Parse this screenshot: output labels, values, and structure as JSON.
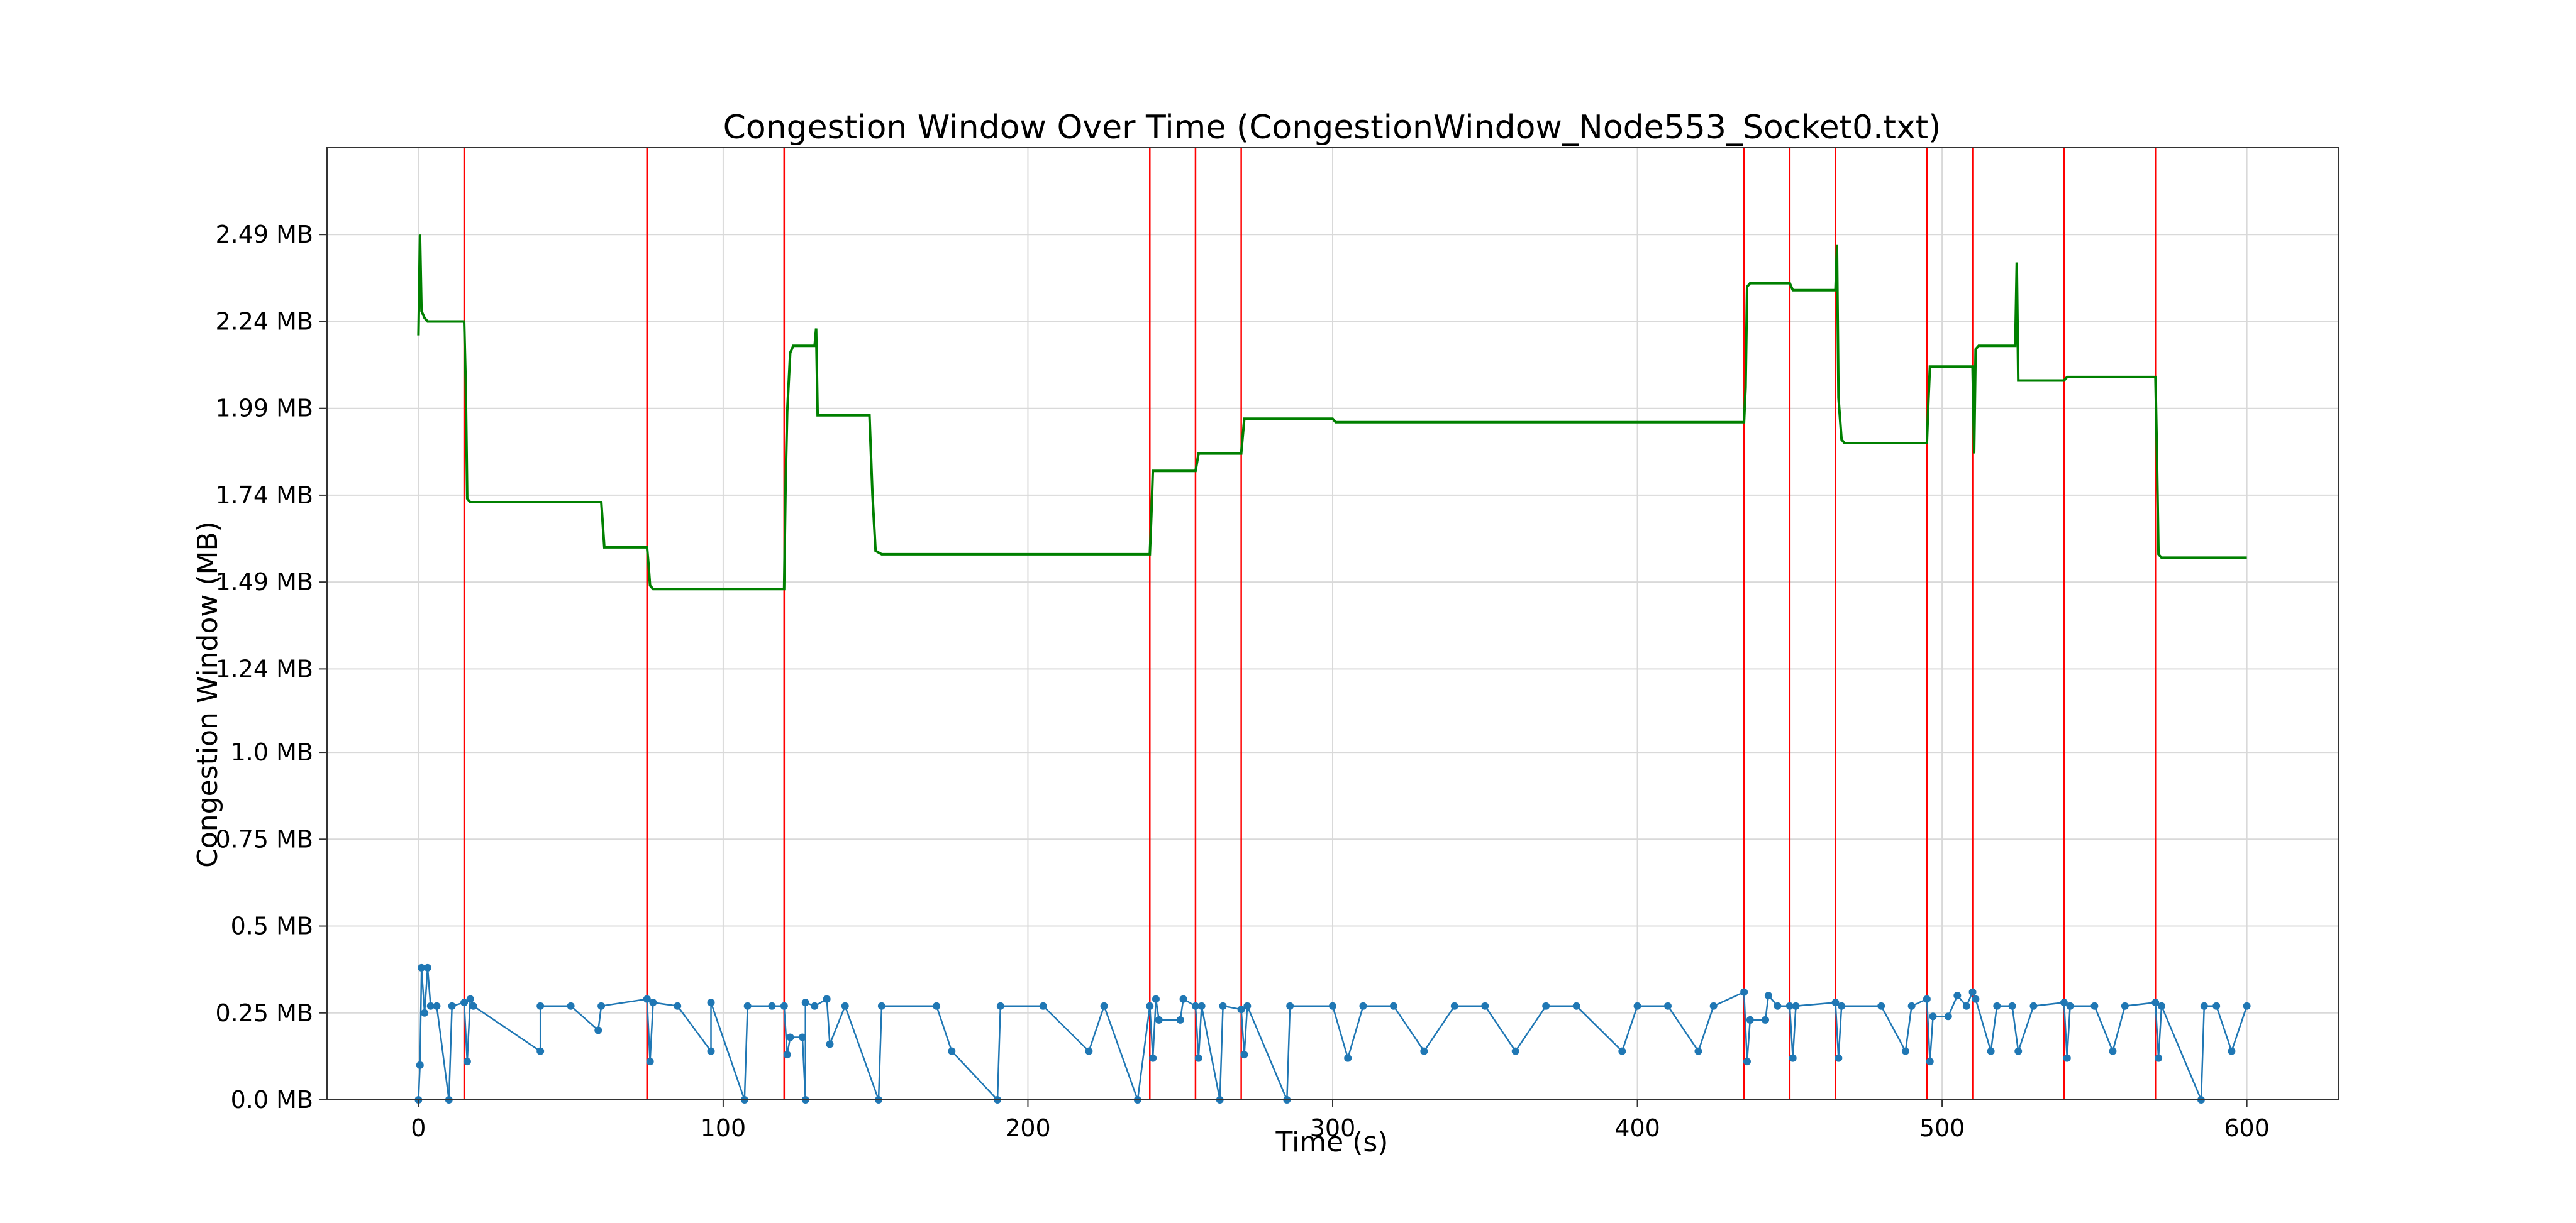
{
  "chart_data": {
    "type": "line",
    "title": "Congestion Window Over Time (CongestionWindow_Node553_Socket0.txt)",
    "xlabel": "Time (s)",
    "ylabel": "Congestion Window (MB)",
    "xlim": [
      -30,
      630
    ],
    "ylim": [
      0,
      2.74
    ],
    "grid": true,
    "legend": "none",
    "x_ticks": [
      0,
      100,
      200,
      300,
      400,
      500,
      600
    ],
    "x_tick_labels": [
      "0",
      "100",
      "200",
      "300",
      "400",
      "500",
      "600"
    ],
    "y_ticks": [
      0.0,
      0.25,
      0.5,
      0.75,
      1.0,
      1.24,
      1.49,
      1.74,
      1.99,
      2.24,
      2.49
    ],
    "y_tick_labels": [
      "0.0 MB",
      "0.25 MB",
      "0.5 MB",
      "0.75 MB",
      "1.0 MB",
      "1.24 MB",
      "1.49 MB",
      "1.74 MB",
      "1.99 MB",
      "2.24 MB",
      "2.49 MB"
    ],
    "event_lines_x": [
      15,
      75,
      120,
      240,
      255,
      270,
      435,
      450,
      465,
      495,
      510,
      540,
      570
    ],
    "series": [
      {
        "color": "#008000",
        "points": [
          [
            0,
            2.2
          ],
          [
            0.5,
            2.49
          ],
          [
            1,
            2.27
          ],
          [
            2,
            2.25
          ],
          [
            3,
            2.24
          ],
          [
            15,
            2.24
          ],
          [
            15.5,
            2.06
          ],
          [
            16,
            1.73
          ],
          [
            17,
            1.72
          ],
          [
            60,
            1.72
          ],
          [
            61,
            1.59
          ],
          [
            75,
            1.59
          ],
          [
            75.5,
            1.54
          ],
          [
            76,
            1.48
          ],
          [
            77,
            1.47
          ],
          [
            120,
            1.47
          ],
          [
            120.5,
            1.78
          ],
          [
            121,
            1.98
          ],
          [
            122,
            2.15
          ],
          [
            123,
            2.17
          ],
          [
            130,
            2.17
          ],
          [
            130.5,
            2.22
          ],
          [
            131,
            1.97
          ],
          [
            133,
            1.97
          ],
          [
            148,
            1.97
          ],
          [
            149,
            1.74
          ],
          [
            150,
            1.58
          ],
          [
            152,
            1.57
          ],
          [
            240,
            1.57
          ],
          [
            240.5,
            1.68
          ],
          [
            241,
            1.81
          ],
          [
            242,
            1.81
          ],
          [
            255,
            1.81
          ],
          [
            256,
            1.86
          ],
          [
            270,
            1.86
          ],
          [
            271,
            1.96
          ],
          [
            300,
            1.96
          ],
          [
            301,
            1.95
          ],
          [
            435,
            1.95
          ],
          [
            435.5,
            2.05
          ],
          [
            436,
            2.34
          ],
          [
            437,
            2.35
          ],
          [
            450,
            2.35
          ],
          [
            451,
            2.33
          ],
          [
            465,
            2.33
          ],
          [
            465.5,
            2.46
          ],
          [
            466,
            2.02
          ],
          [
            467,
            1.9
          ],
          [
            468,
            1.89
          ],
          [
            495,
            1.89
          ],
          [
            495.5,
            2.01
          ],
          [
            496,
            2.11
          ],
          [
            497,
            2.11
          ],
          [
            510,
            2.11
          ],
          [
            510.5,
            1.86
          ],
          [
            511,
            2.16
          ],
          [
            512,
            2.17
          ],
          [
            524,
            2.17
          ],
          [
            524.5,
            2.41
          ],
          [
            525,
            2.07
          ],
          [
            540,
            2.07
          ],
          [
            541,
            2.08
          ],
          [
            570,
            2.08
          ],
          [
            570.5,
            1.85
          ],
          [
            571,
            1.57
          ],
          [
            572,
            1.56
          ],
          [
            600,
            1.56
          ]
        ]
      },
      {
        "color": "#1f77b4",
        "points": [
          [
            0,
            0.0
          ],
          [
            0.5,
            0.1
          ],
          [
            1,
            0.38
          ],
          [
            2,
            0.25
          ],
          [
            3,
            0.38
          ],
          [
            4,
            0.27
          ],
          [
            6,
            0.27
          ],
          [
            10,
            0.0
          ],
          [
            11,
            0.27
          ],
          [
            15,
            0.28
          ],
          [
            16,
            0.11
          ],
          [
            17,
            0.29
          ],
          [
            18,
            0.27
          ],
          [
            40,
            0.14
          ],
          [
            40,
            0.27
          ],
          [
            50,
            0.27
          ],
          [
            59,
            0.2
          ],
          [
            60,
            0.27
          ],
          [
            75,
            0.29
          ],
          [
            76,
            0.11
          ],
          [
            77,
            0.28
          ],
          [
            85,
            0.27
          ],
          [
            96,
            0.14
          ],
          [
            96,
            0.28
          ],
          [
            107,
            0.0
          ],
          [
            108,
            0.27
          ],
          [
            116,
            0.27
          ],
          [
            120,
            0.27
          ],
          [
            121,
            0.13
          ],
          [
            122,
            0.18
          ],
          [
            126,
            0.18
          ],
          [
            127,
            0.0
          ],
          [
            127,
            0.28
          ],
          [
            130,
            0.27
          ],
          [
            134,
            0.29
          ],
          [
            135,
            0.16
          ],
          [
            140,
            0.27
          ],
          [
            151,
            0.0
          ],
          [
            152,
            0.27
          ],
          [
            170,
            0.27
          ],
          [
            175,
            0.14
          ],
          [
            190,
            0.0
          ],
          [
            191,
            0.27
          ],
          [
            205,
            0.27
          ],
          [
            220,
            0.14
          ],
          [
            225,
            0.27
          ],
          [
            236,
            0.0
          ],
          [
            240,
            0.27
          ],
          [
            241,
            0.12
          ],
          [
            242,
            0.29
          ],
          [
            243,
            0.23
          ],
          [
            250,
            0.23
          ],
          [
            251,
            0.29
          ],
          [
            255,
            0.27
          ],
          [
            256,
            0.12
          ],
          [
            257,
            0.27
          ],
          [
            263,
            0.0
          ],
          [
            264,
            0.27
          ],
          [
            270,
            0.26
          ],
          [
            271,
            0.13
          ],
          [
            272,
            0.27
          ],
          [
            285,
            0.0
          ],
          [
            286,
            0.27
          ],
          [
            300,
            0.27
          ],
          [
            305,
            0.12
          ],
          [
            310,
            0.27
          ],
          [
            320,
            0.27
          ],
          [
            330,
            0.14
          ],
          [
            340,
            0.27
          ],
          [
            350,
            0.27
          ],
          [
            360,
            0.14
          ],
          [
            370,
            0.27
          ],
          [
            380,
            0.27
          ],
          [
            395,
            0.14
          ],
          [
            400,
            0.27
          ],
          [
            410,
            0.27
          ],
          [
            420,
            0.14
          ],
          [
            425,
            0.27
          ],
          [
            435,
            0.31
          ],
          [
            436,
            0.11
          ],
          [
            437,
            0.23
          ],
          [
            442,
            0.23
          ],
          [
            443,
            0.3
          ],
          [
            446,
            0.27
          ],
          [
            450,
            0.27
          ],
          [
            451,
            0.12
          ],
          [
            452,
            0.27
          ],
          [
            465,
            0.28
          ],
          [
            466,
            0.12
          ],
          [
            467,
            0.27
          ],
          [
            480,
            0.27
          ],
          [
            488,
            0.14
          ],
          [
            490,
            0.27
          ],
          [
            495,
            0.29
          ],
          [
            496,
            0.11
          ],
          [
            497,
            0.24
          ],
          [
            502,
            0.24
          ],
          [
            505,
            0.3
          ],
          [
            508,
            0.27
          ],
          [
            510,
            0.31
          ],
          [
            511,
            0.29
          ],
          [
            516,
            0.14
          ],
          [
            518,
            0.27
          ],
          [
            523,
            0.27
          ],
          [
            525,
            0.14
          ],
          [
            530,
            0.27
          ],
          [
            540,
            0.28
          ],
          [
            541,
            0.12
          ],
          [
            542,
            0.27
          ],
          [
            550,
            0.27
          ],
          [
            556,
            0.14
          ],
          [
            560,
            0.27
          ],
          [
            570,
            0.28
          ],
          [
            571,
            0.12
          ],
          [
            572,
            0.27
          ],
          [
            585,
            0.0
          ],
          [
            586,
            0.27
          ],
          [
            590,
            0.27
          ],
          [
            595,
            0.14
          ],
          [
            600,
            0.27
          ]
        ]
      }
    ]
  }
}
